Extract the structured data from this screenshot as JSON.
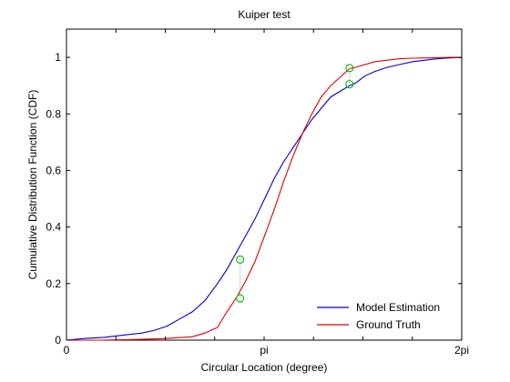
{
  "chart_data": {
    "type": "line",
    "title": "Kuiper test",
    "xlabel": "Circular Location (degree)",
    "ylabel": "Cumulative Distribution Function (CDF)",
    "xlim": [
      0,
      6.2832
    ],
    "ylim": [
      0,
      1.1
    ],
    "x_ticks": [
      {
        "value": 0,
        "label": "0"
      },
      {
        "value": 0.785,
        "label": ""
      },
      {
        "value": 1.571,
        "label": ""
      },
      {
        "value": 2.356,
        "label": ""
      },
      {
        "value": 3.1416,
        "label": "pi"
      },
      {
        "value": 3.927,
        "label": ""
      },
      {
        "value": 4.712,
        "label": ""
      },
      {
        "value": 5.498,
        "label": ""
      },
      {
        "value": 6.2832,
        "label": "2pi"
      }
    ],
    "y_ticks": [
      {
        "value": 0,
        "label": "0"
      },
      {
        "value": 0.2,
        "label": "0.2"
      },
      {
        "value": 0.4,
        "label": "0.4"
      },
      {
        "value": 0.6,
        "label": "0.6"
      },
      {
        "value": 0.8,
        "label": "0.8"
      },
      {
        "value": 1.0,
        "label": "1"
      }
    ],
    "legend_position": "bottom-right",
    "series": [
      {
        "name": "Model Estimation",
        "color": "#0000cc",
        "x": [
          0,
          0.15,
          0.3,
          0.6,
          0.9,
          1.2,
          1.4,
          1.6,
          1.8,
          2.0,
          2.2,
          2.4,
          2.55,
          2.7,
          2.85,
          3.0,
          3.15,
          3.3,
          3.45,
          3.6,
          3.75,
          3.9,
          4.05,
          4.2,
          4.35,
          4.5,
          4.6,
          4.75,
          4.9,
          5.1,
          5.3,
          5.5,
          5.7,
          5.9,
          6.1,
          6.2832
        ],
        "y": [
          0,
          0.003,
          0.006,
          0.01,
          0.018,
          0.025,
          0.035,
          0.05,
          0.075,
          0.1,
          0.14,
          0.2,
          0.25,
          0.31,
          0.37,
          0.43,
          0.5,
          0.57,
          0.63,
          0.68,
          0.73,
          0.78,
          0.82,
          0.86,
          0.88,
          0.9,
          0.91,
          0.935,
          0.95,
          0.965,
          0.975,
          0.985,
          0.99,
          0.995,
          0.998,
          1.0
        ]
      },
      {
        "name": "Ground Truth",
        "color": "#dd0000",
        "x": [
          0,
          0.5,
          1.0,
          1.5,
          2.0,
          2.2,
          2.4,
          2.55,
          2.7,
          2.85,
          3.0,
          3.15,
          3.3,
          3.45,
          3.6,
          3.75,
          3.9,
          4.05,
          4.2,
          4.35,
          4.5,
          4.6,
          4.75,
          4.9,
          5.1,
          5.3,
          5.5,
          5.7,
          5.9,
          6.1,
          6.2832
        ],
        "y": [
          0,
          0.0,
          0.002,
          0.005,
          0.012,
          0.025,
          0.045,
          0.1,
          0.15,
          0.21,
          0.28,
          0.37,
          0.46,
          0.56,
          0.65,
          0.73,
          0.8,
          0.86,
          0.9,
          0.93,
          0.96,
          0.965,
          0.975,
          0.985,
          0.99,
          0.995,
          0.997,
          0.998,
          0.999,
          1.0,
          1.0
        ]
      }
    ],
    "markers": [
      {
        "x": 2.76,
        "y": 0.285,
        "color": "#00bb00"
      },
      {
        "x": 2.76,
        "y": 0.148,
        "color": "#00bb00"
      },
      {
        "x": 4.5,
        "y": 0.962,
        "color": "#00bb00"
      },
      {
        "x": 4.5,
        "y": 0.905,
        "color": "#00bb00"
      }
    ]
  }
}
